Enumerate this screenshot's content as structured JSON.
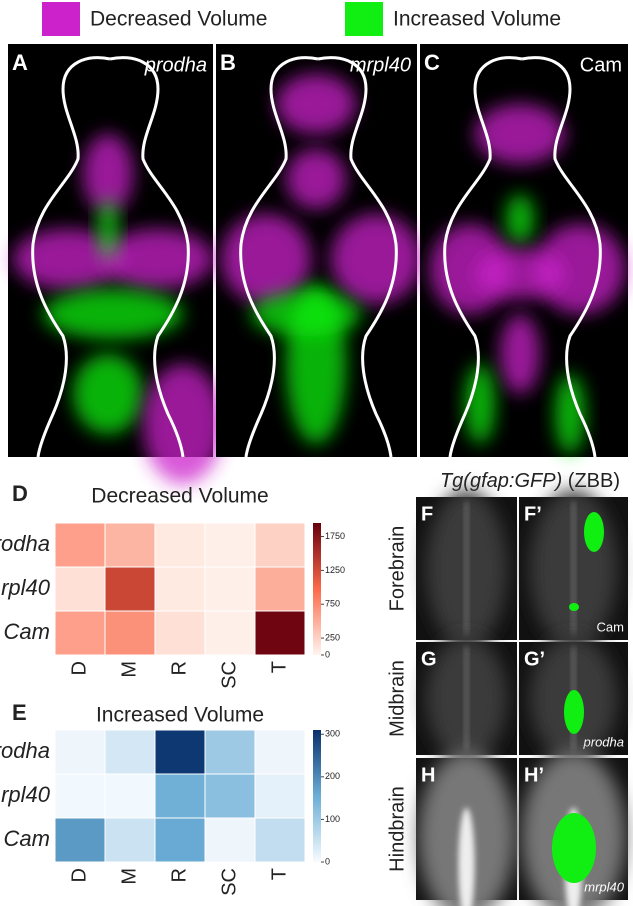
{
  "legend": [
    {
      "label": "Decreased Volume",
      "color": "#cc22cc"
    },
    {
      "label": "Increased Volume",
      "color": "#11ee11"
    }
  ],
  "brain_panels": [
    {
      "letter": "A",
      "label": "prodha"
    },
    {
      "letter": "B",
      "label": "mrpl40"
    },
    {
      "letter": "C",
      "label": "Cam"
    }
  ],
  "chart_data": [
    {
      "type": "heatmap",
      "letter": "D",
      "title": "Decreased Volume",
      "rows": [
        "prodha",
        "mrpl40",
        "Cam"
      ],
      "categories": [
        "D",
        "M",
        "R",
        "SC",
        "T"
      ],
      "values": [
        [
          600,
          450,
          80,
          40,
          250
        ],
        [
          150,
          1300,
          80,
          40,
          500
        ],
        [
          600,
          700,
          150,
          40,
          1900
        ]
      ],
      "zlim": [
        0,
        1950
      ],
      "zticks": [
        0,
        250,
        750,
        1250,
        1750
      ],
      "colors": [
        "#fff5f0",
        "#fb6a4a",
        "#67000d"
      ]
    },
    {
      "type": "heatmap",
      "letter": "E",
      "title": "Increased Volume",
      "rows": [
        "prodha",
        "mrpl40",
        "Cam"
      ],
      "categories": [
        "D",
        "M",
        "R",
        "SC",
        "T"
      ],
      "values": [
        [
          10,
          40,
          300,
          100,
          10
        ],
        [
          5,
          5,
          150,
          120,
          20
        ],
        [
          180,
          50,
          160,
          10,
          60
        ]
      ],
      "zlim": [
        0,
        310
      ],
      "zticks": [
        0,
        100,
        200,
        300
      ],
      "colors": [
        "#f7fbff",
        "#6baed6",
        "#08306b"
      ]
    }
  ],
  "gfap_panels": {
    "title_italic": "Tg(gfap:GFP)",
    "title_suffix": "(ZBB)",
    "rows": [
      {
        "region": "Forebrain",
        "left": "F",
        "right": "F’",
        "tag": "Cam"
      },
      {
        "region": "Midbrain",
        "left": "G",
        "right": "G’",
        "tag": "prodha"
      },
      {
        "region": "Hindbrain",
        "left": "H",
        "right": "H’",
        "tag": "mrpl40"
      }
    ]
  }
}
